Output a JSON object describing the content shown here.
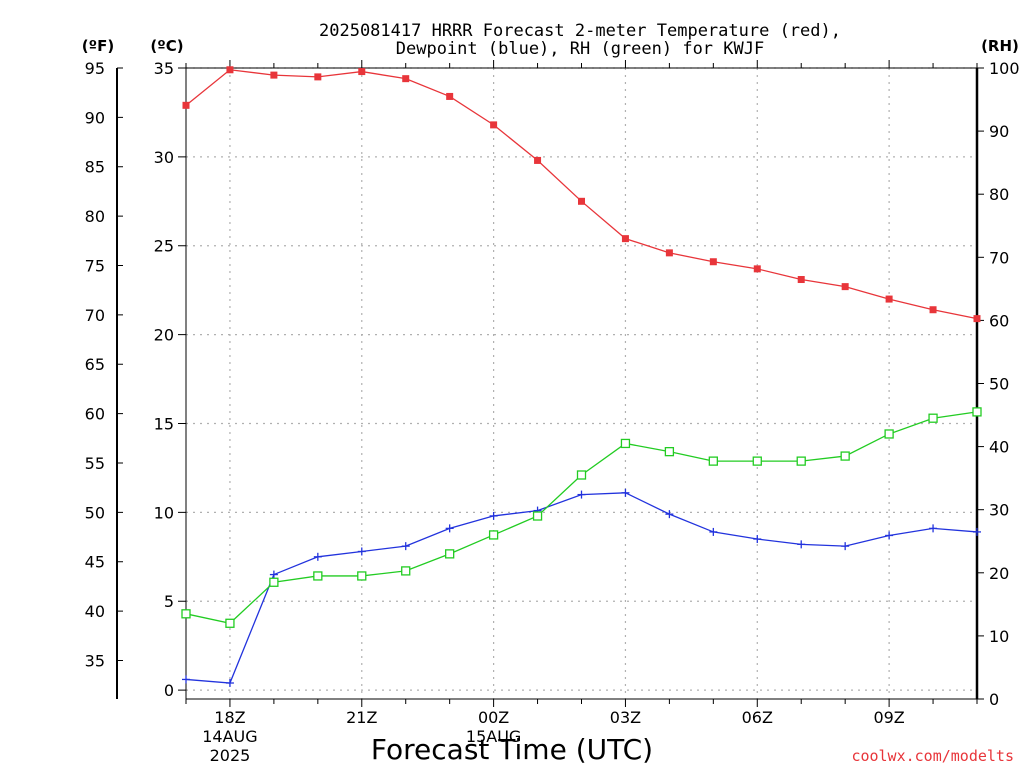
{
  "chart_data": {
    "type": "line",
    "title_lines": [
      "2025081417 HRRR Forecast 2-meter Temperature (red),",
      "Dewpoint (blue), RH (green) for KWJF"
    ],
    "xlabel": "Forecast Time (UTC)",
    "credit": "coolwx.com/modelts",
    "unit_labels": {
      "fahrenheit": "(ºF)",
      "celsius": "(ºC)",
      "rh": "(RH)"
    },
    "x_hours": [
      17,
      18,
      19,
      20,
      21,
      22,
      23,
      24,
      25,
      26,
      27,
      28,
      29,
      30,
      31,
      32,
      33,
      34,
      35
    ],
    "x_tick_labels": [
      {
        "hour": 18,
        "lines": [
          "18Z",
          "14AUG",
          "2025"
        ]
      },
      {
        "hour": 21,
        "lines": [
          "21Z"
        ]
      },
      {
        "hour": 24,
        "lines": [
          "00Z",
          "15AUG"
        ]
      },
      {
        "hour": 27,
        "lines": [
          "03Z"
        ]
      },
      {
        "hour": 30,
        "lines": [
          "06Z"
        ]
      },
      {
        "hour": 33,
        "lines": [
          "09Z"
        ]
      }
    ],
    "x_range_hours": [
      17,
      35
    ],
    "axes": {
      "celsius": {
        "range": [
          -0.5,
          35
        ],
        "ticks": [
          0,
          5,
          10,
          15,
          20,
          25,
          30,
          35
        ]
      },
      "fahrenheit": {
        "range": [
          31.1,
          95
        ],
        "ticks": [
          35,
          40,
          45,
          50,
          55,
          60,
          65,
          70,
          75,
          80,
          85,
          90,
          95
        ]
      },
      "rh": {
        "range": [
          0,
          100
        ],
        "ticks": [
          0,
          10,
          20,
          30,
          40,
          50,
          60,
          70,
          80,
          90,
          100
        ]
      }
    },
    "grid": true,
    "series": [
      {
        "key": "temperature",
        "axis": "celsius",
        "color": "#e8353a",
        "marker": "filled-square",
        "values": [
          32.9,
          34.9,
          34.6,
          34.5,
          34.8,
          34.4,
          33.4,
          31.8,
          29.8,
          27.5,
          25.4,
          24.6,
          24.1,
          23.7,
          23.1,
          22.7,
          22.0,
          21.4,
          20.9
        ]
      },
      {
        "key": "dewpoint",
        "axis": "celsius",
        "color": "#2233dd",
        "marker": "plus",
        "values": [
          0.6,
          0.4,
          6.5,
          7.5,
          7.8,
          8.1,
          9.1,
          9.8,
          10.1,
          11.0,
          11.1,
          9.9,
          8.9,
          8.5,
          8.2,
          8.1,
          8.7,
          9.1,
          8.9
        ]
      },
      {
        "key": "rh",
        "axis": "rh",
        "color": "#22cc22",
        "marker": "open-square",
        "values": [
          13.5,
          12.0,
          18.5,
          19.5,
          19.5,
          20.3,
          23.0,
          26.0,
          29.0,
          35.5,
          40.5,
          39.2,
          37.7,
          37.7,
          37.7,
          38.5,
          42.0,
          44.5,
          45.5
        ]
      }
    ]
  }
}
